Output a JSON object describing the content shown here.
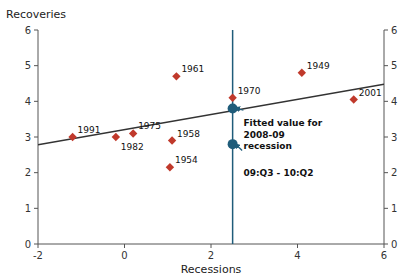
{
  "chart_data": {
    "type": "scatter",
    "xlabel": "Recessions",
    "ylabel": "Recoveries",
    "xlim": [
      -2,
      6
    ],
    "ylim": [
      0,
      6
    ],
    "xticks": [
      -2,
      0,
      2,
      4,
      6
    ],
    "yticks": [
      0,
      1,
      2,
      3,
      4,
      5,
      6
    ],
    "y2lim": [
      0,
      6
    ],
    "y2ticks": [
      0,
      1,
      2,
      3,
      4,
      5,
      6
    ],
    "grid": false,
    "series": [
      {
        "type": "line",
        "x": [
          -2.0,
          6.0
        ],
        "values": [
          2.78,
          4.48
        ],
        "color": "#333333"
      },
      {
        "type": "vline",
        "x": [
          2.5
        ],
        "color": "#1F5C7A"
      },
      {
        "type": "scatter",
        "marker": "diamond",
        "color": "#C0392B",
        "x": [
          -1.2,
          -0.2,
          0.2,
          1.05,
          1.1,
          1.2,
          2.5,
          4.1,
          5.3
        ],
        "values": [
          3.0,
          3.0,
          3.1,
          2.15,
          2.9,
          4.7,
          4.1,
          4.8,
          4.05
        ],
        "labels": [
          "1991",
          "1982",
          "1975",
          "1954",
          "1958",
          "1961",
          "1970",
          "1949",
          "2001"
        ]
      },
      {
        "type": "scatter",
        "marker": "circle",
        "color": "#1F5C7A",
        "x": [
          2.5,
          2.5
        ],
        "values": [
          3.8,
          2.8
        ]
      }
    ],
    "annotations": [
      {
        "text": "Fitted value for\n2008-09\nrecession",
        "x": 2.75,
        "y": 3.55,
        "arrow_from": [
          2.75,
          3.75
        ],
        "arrow_to": [
          2.55,
          3.82
        ],
        "color": "#1F5C7A"
      },
      {
        "text": "09:Q3 - 10:Q2",
        "x": 2.75,
        "y": 2.15,
        "arrow_from": [
          2.72,
          2.62
        ],
        "arrow_to": [
          2.55,
          2.82
        ],
        "color": "#1F5C7A"
      }
    ]
  }
}
